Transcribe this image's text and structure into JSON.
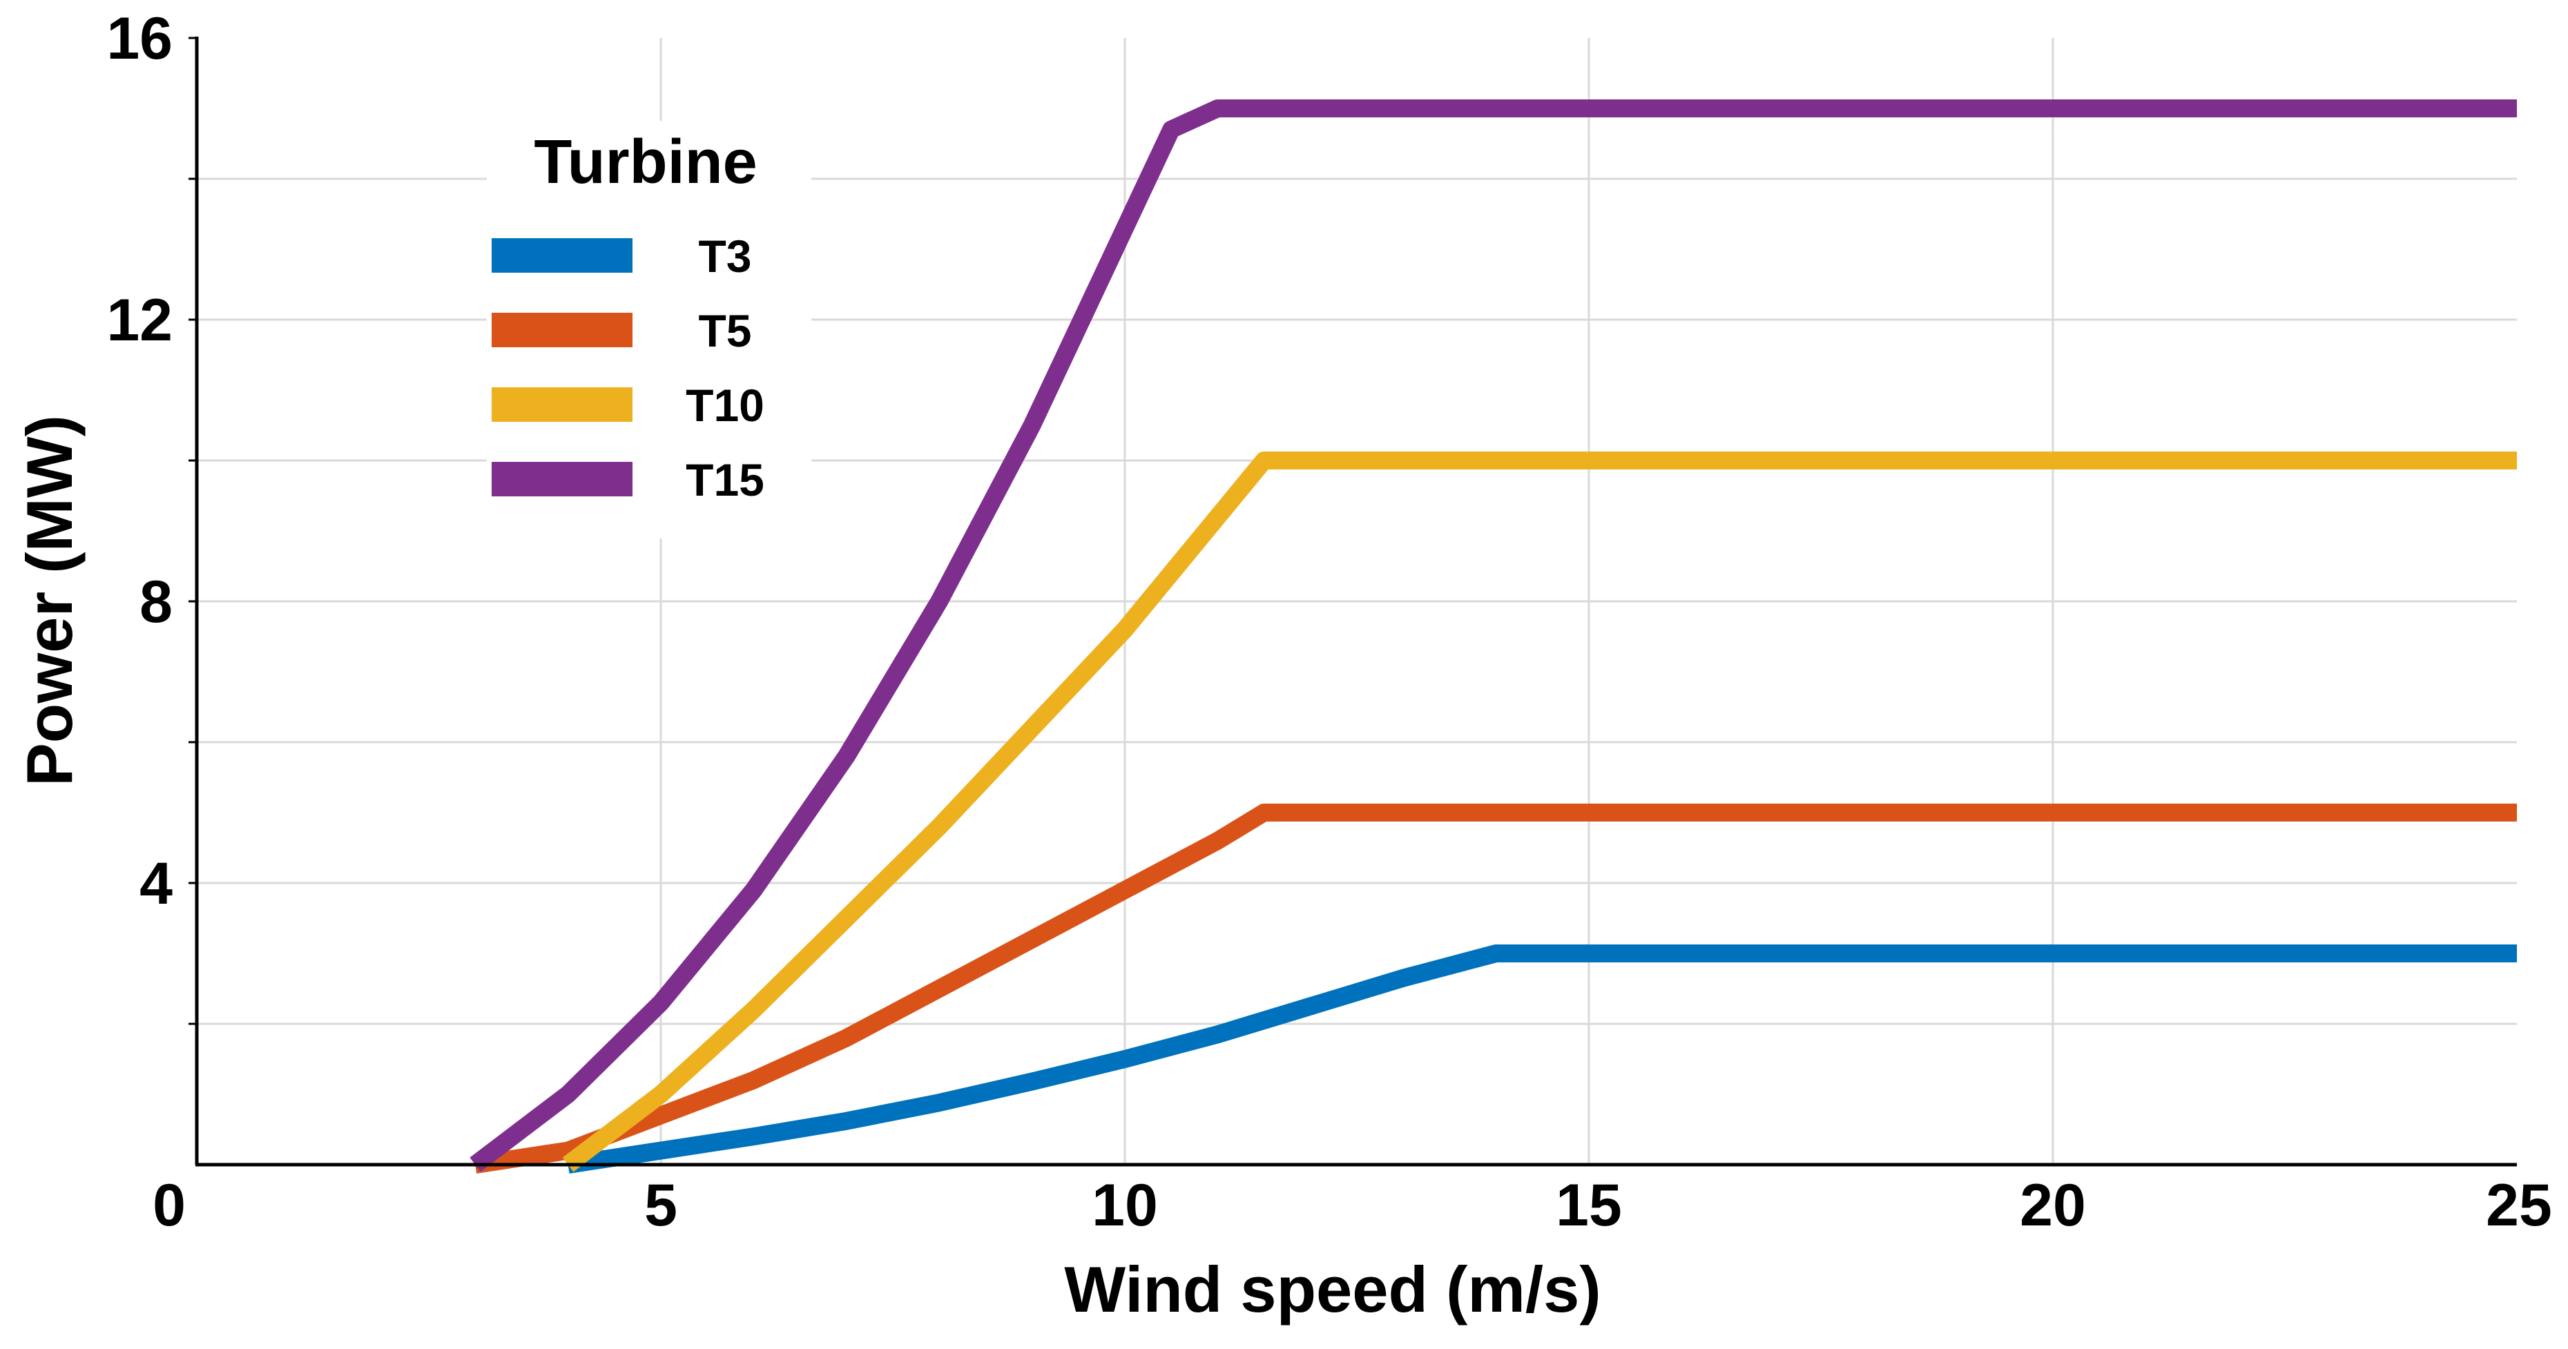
{
  "chart_data": {
    "type": "line",
    "title": "",
    "xlabel": "Wind speed (m/s)",
    "ylabel": "Power (MW)",
    "xlim": [
      0,
      25
    ],
    "ylim": [
      0,
      16
    ],
    "xticks": [
      0,
      5,
      10,
      15,
      20,
      25
    ],
    "xtick_labels": [
      "0",
      "5",
      "10",
      "15",
      "20",
      "25"
    ],
    "yticks": [
      4,
      8,
      12,
      16
    ],
    "ytick_labels": [
      "4",
      "8",
      "12",
      "16"
    ],
    "y_minor_ticks": [
      2,
      6,
      10,
      14
    ],
    "grid": true,
    "legend": {
      "title": "Turbine",
      "location": "upper-left"
    },
    "series": [
      {
        "name": "T3",
        "color": "#0072BD",
        "x": [
          4,
          5,
          6,
          7,
          8,
          9,
          10,
          11,
          12,
          13,
          14,
          25
        ],
        "y": [
          0,
          0.2,
          0.4,
          0.62,
          0.88,
          1.18,
          1.5,
          1.85,
          2.25,
          2.65,
          3.0,
          3.0
        ]
      },
      {
        "name": "T5",
        "color": "#D95319",
        "x": [
          3,
          4,
          5,
          6,
          7,
          8,
          9,
          10,
          11,
          11.5,
          25
        ],
        "y": [
          0,
          0.2,
          0.7,
          1.2,
          1.8,
          2.5,
          3.2,
          3.9,
          4.6,
          5.0,
          5.0
        ]
      },
      {
        "name": "T10",
        "color": "#EDB120",
        "x": [
          4,
          5,
          6,
          7,
          8,
          9,
          10,
          11,
          11.5,
          25
        ],
        "y": [
          0,
          1.0,
          2.2,
          3.5,
          4.8,
          6.2,
          7.6,
          9.2,
          10.0,
          10.0
        ]
      },
      {
        "name": "T15",
        "color": "#7E2F8E",
        "x": [
          3,
          4,
          5,
          6,
          7,
          8,
          9,
          10,
          10.5,
          11,
          25
        ],
        "y": [
          0,
          1.0,
          2.3,
          3.9,
          5.8,
          8.0,
          10.5,
          13.3,
          14.7,
          15.0,
          15.0
        ]
      }
    ]
  }
}
